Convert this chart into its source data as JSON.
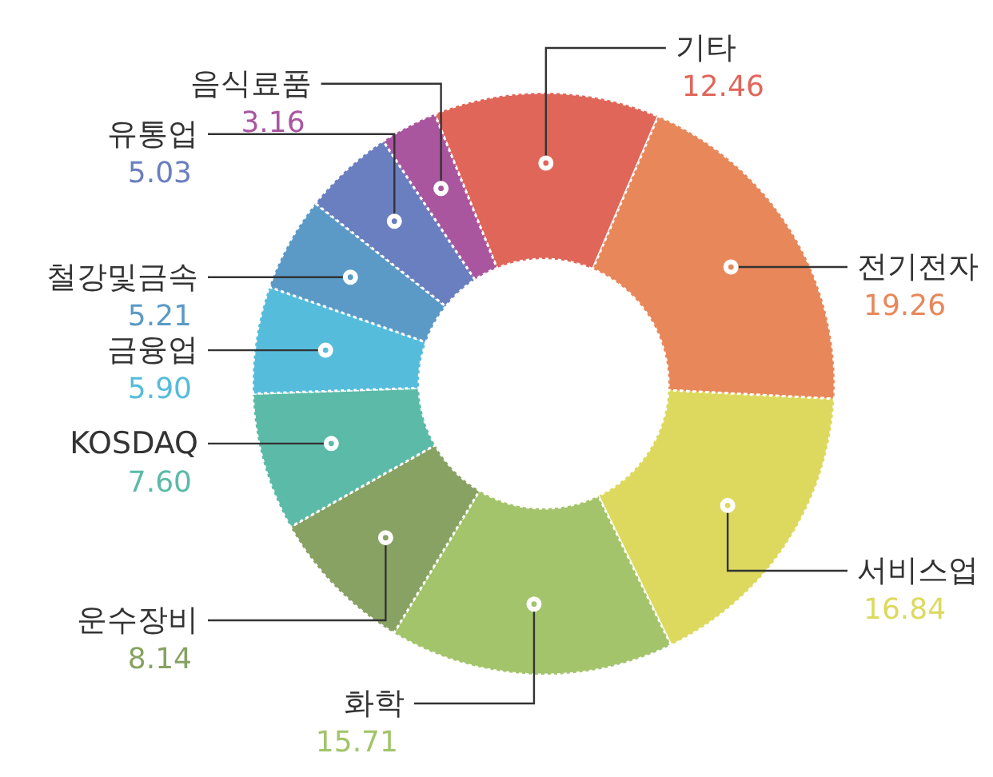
{
  "chart_data": {
    "type": "donut",
    "categories": [
      "기타",
      "전기전자",
      "서비스업",
      "화학",
      "운수장비",
      "KOSDAQ",
      "금융업",
      "철강및금속",
      "유통업",
      "음식료품"
    ],
    "values": [
      12.46,
      19.26,
      16.84,
      15.71,
      8.14,
      7.6,
      5.9,
      5.21,
      5.03,
      3.16
    ],
    "colors": [
      "#e0665a",
      "#e8875a",
      "#dcd95e",
      "#a3c46a",
      "#87a262",
      "#5cbaa8",
      "#56bcdc",
      "#5b9ac6",
      "#6a7fbf",
      "#a9569f"
    ],
    "value_labels": [
      "12.46",
      "19.26",
      "16.84",
      "15.71",
      "8.14",
      "7.60",
      "5.90",
      "5.21",
      "5.03",
      "3.16"
    ]
  }
}
